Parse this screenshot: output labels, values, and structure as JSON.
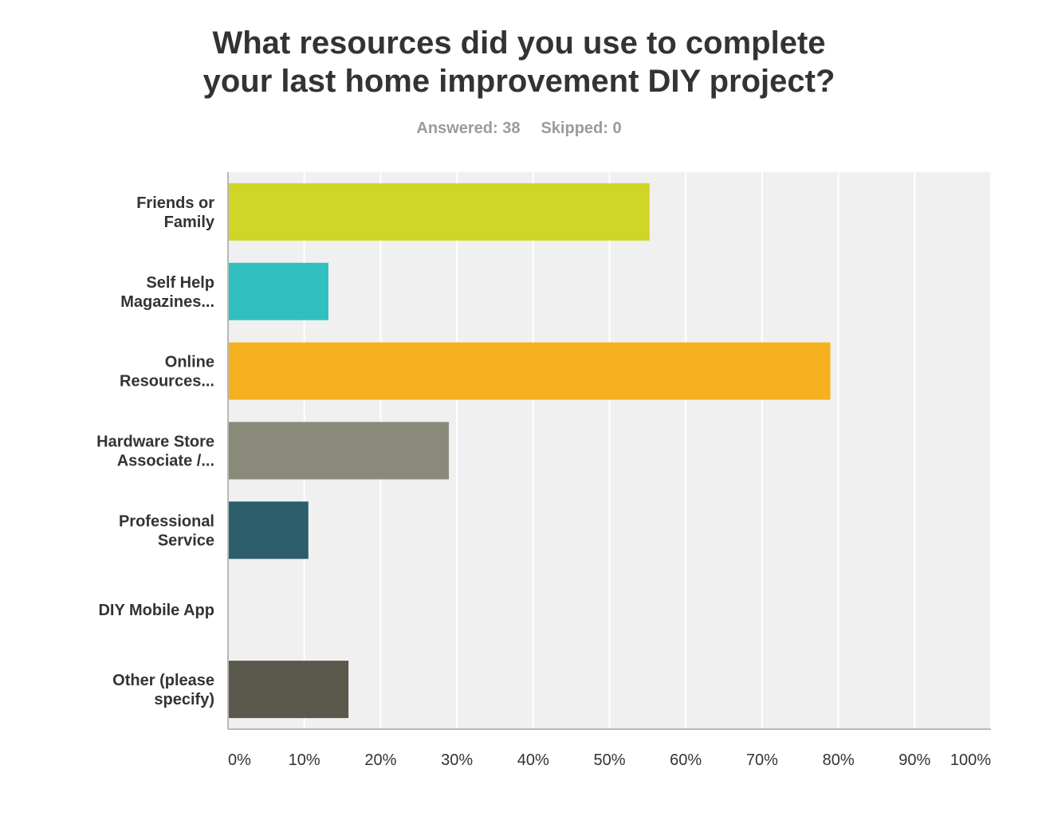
{
  "header": {
    "title_line1": "What resources did you use to complete",
    "title_line2": "your last home improvement DIY project?",
    "answered": "Answered: 38",
    "skipped": "Skipped: 0"
  },
  "chart_data": {
    "type": "bar",
    "orientation": "horizontal",
    "title": "What resources did you use to complete your last home improvement DIY project?",
    "categories": [
      [
        "Friends or",
        "Family"
      ],
      [
        "Self Help",
        "Magazines..."
      ],
      [
        "Online",
        "Resources..."
      ],
      [
        "Hardware Store",
        "Associate /..."
      ],
      [
        "Professional",
        "Service"
      ],
      [
        "DIY Mobile App"
      ],
      [
        "Other (please",
        "specify)"
      ]
    ],
    "values": [
      55.26,
      13.16,
      78.95,
      28.95,
      10.53,
      0,
      15.79
    ],
    "colors": [
      "#cfd626",
      "#32bfc0",
      "#f5b11f",
      "#8a8a7b",
      "#2c5e6c",
      "#cccccc",
      "#5b594b"
    ],
    "xlim": [
      0,
      100
    ],
    "xticks": [
      "0%",
      "10%",
      "20%",
      "30%",
      "40%",
      "50%",
      "60%",
      "70%",
      "80%",
      "90%",
      "100%"
    ],
    "grid": true,
    "background": "#f0f0f0",
    "xlabel": "",
    "ylabel": ""
  }
}
